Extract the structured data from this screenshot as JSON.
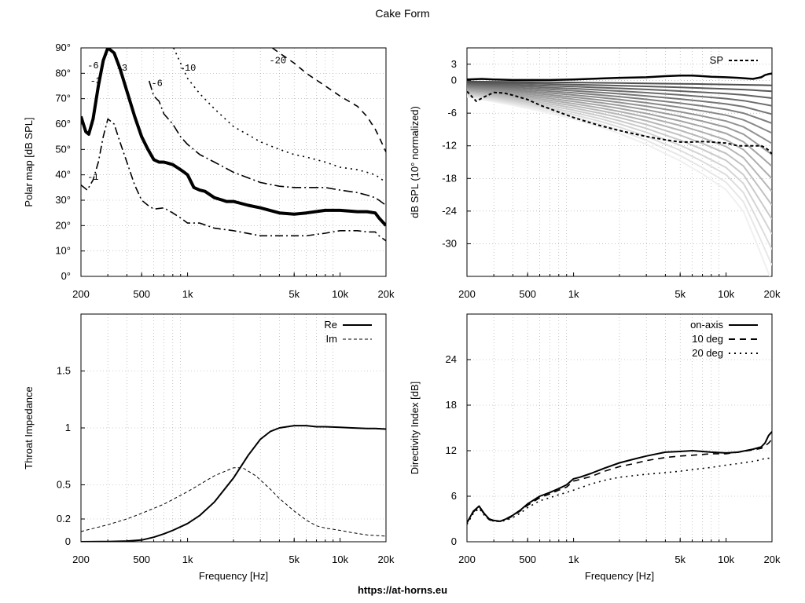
{
  "title": "Cake Form",
  "footer": "https://at-horns.eu",
  "colors": {
    "frame": "#000000",
    "grid": "#a0a0a0",
    "line": "#000000"
  },
  "chart_data": [
    {
      "id": "polar",
      "type": "line",
      "ylabel": "Polar map [dB SPL]",
      "xlabel": "",
      "xscale": "log",
      "xlim": [
        200,
        20000
      ],
      "ylim": [
        0,
        90
      ],
      "xticks": [
        200,
        500,
        1000,
        5000,
        10000,
        20000
      ],
      "xticklabels": [
        "200",
        "500",
        "1k",
        "5k",
        "10k",
        "20k"
      ],
      "yticks": [
        0,
        10,
        20,
        30,
        40,
        50,
        60,
        70,
        80,
        90
      ],
      "yticklabels": [
        "0°",
        "10°",
        "20°",
        "30°",
        "40°",
        "50°",
        "60°",
        "70°",
        "80°",
        "90°"
      ],
      "grid": true,
      "contour_labels": [
        {
          "text": "-6",
          "x": 240,
          "y": 82
        },
        {
          "text": "-3",
          "x": 250,
          "y": 76
        },
        {
          "text": "-3",
          "x": 370,
          "y": 81
        },
        {
          "text": "-6",
          "x": 630,
          "y": 75
        },
        {
          "text": "-10",
          "x": 1000,
          "y": 81
        },
        {
          "text": "-20",
          "x": 3900,
          "y": 84
        },
        {
          "text": "-1",
          "x": 240,
          "y": 38
        }
      ],
      "series": [
        {
          "style": "thick",
          "x": [
            200,
            215,
            225,
            240,
            260,
            280,
            300,
            330,
            360,
            400,
            450,
            500,
            550,
            600,
            650,
            700,
            750,
            800,
            850,
            900,
            950,
            1000,
            1100,
            1200,
            1300,
            1500,
            1700,
            1800,
            2000,
            2500,
            3000,
            4000,
            5000,
            6000,
            8000,
            10000,
            13000,
            15000,
            17000,
            18000,
            20000
          ],
          "y": [
            63,
            57,
            56,
            62,
            75,
            85,
            90,
            88,
            82,
            73,
            63,
            55,
            50,
            46,
            45,
            45,
            44.5,
            44,
            43,
            42,
            41,
            40,
            35,
            34,
            33.5,
            31,
            30,
            29.5,
            29.5,
            28,
            27,
            25,
            24.5,
            25,
            26,
            26,
            25.5,
            25.5,
            25,
            23,
            20
          ]
        },
        {
          "style": "dashdot",
          "x": [
            200,
            220,
            240,
            260,
            280,
            300,
            330,
            360,
            400,
            450,
            500,
            550,
            600,
            700,
            800,
            900,
            1000,
            1200,
            1500,
            2000,
            3000,
            4000,
            5000,
            6000,
            8000,
            10000,
            13000,
            15000,
            17000,
            18000,
            20000
          ],
          "y": [
            36,
            34,
            38,
            45,
            55,
            62,
            60,
            53,
            45,
            36,
            30,
            28,
            26.5,
            27,
            25,
            23,
            21,
            21,
            19,
            18,
            16,
            16,
            16,
            16,
            17,
            18,
            18,
            17.5,
            17.5,
            16,
            14
          ]
        },
        {
          "style": "dashdot-long",
          "x": [
            560,
            600,
            650,
            700,
            800,
            900,
            1000,
            1200,
            1500,
            2000,
            3000,
            4000,
            5000,
            6000,
            8000,
            10000,
            13000,
            15000,
            17000,
            18000,
            20000
          ],
          "y": [
            77,
            71,
            69,
            64,
            60,
            55,
            52,
            48,
            45,
            41,
            37,
            35.5,
            35,
            35,
            35,
            34,
            33,
            32,
            31,
            30,
            28
          ]
        },
        {
          "style": "dotted",
          "x": [
            810,
            900,
            1000,
            1200,
            1500,
            2000,
            3000,
            4000,
            5000,
            6000,
            8000,
            10000,
            13000,
            15000,
            17000,
            18000,
            20000
          ],
          "y": [
            90,
            84,
            78,
            72,
            66,
            59,
            53,
            50,
            48,
            47,
            45,
            43,
            42,
            41,
            40,
            39,
            37
          ]
        },
        {
          "style": "dashed",
          "x": [
            3600,
            4000,
            5000,
            6000,
            8000,
            10000,
            13000,
            15000,
            17000,
            18000,
            20000
          ],
          "y": [
            90,
            88,
            84,
            80,
            75,
            71,
            67,
            63,
            58,
            55,
            49
          ]
        }
      ]
    },
    {
      "id": "spl",
      "type": "line",
      "ylabel": "dB SPL (10° normalized)",
      "xlabel": "",
      "xscale": "log",
      "xlim": [
        200,
        20000
      ],
      "ylim": [
        -36,
        6
      ],
      "xticks": [
        200,
        500,
        1000,
        5000,
        10000,
        20000
      ],
      "xticklabels": [
        "200",
        "500",
        "1k",
        "5k",
        "10k",
        "20k"
      ],
      "yticks": [
        3,
        0,
        -6,
        -12,
        -18,
        -24,
        -30
      ],
      "yticklabels": [
        "3",
        "0",
        "-6",
        "-12",
        "-18",
        "-24",
        "-30"
      ],
      "grid": true,
      "legend": "top-right",
      "legend_entries": [
        "SP"
      ],
      "on_axis": {
        "x": [
          200,
          250,
          300,
          400,
          500,
          700,
          1000,
          2000,
          3000,
          4000,
          5000,
          6000,
          7000,
          8000,
          10000,
          12000,
          15000,
          17000,
          18000,
          19000,
          20000
        ],
        "y": [
          0.2,
          0.3,
          0.2,
          0.1,
          0.1,
          0.1,
          0.2,
          0.5,
          0.6,
          0.8,
          0.9,
          0.9,
          0.8,
          0.7,
          0.6,
          0.5,
          0.3,
          0.6,
          1.0,
          1.2,
          1.3
        ]
      },
      "sp": {
        "name": "SP",
        "x": [
          200,
          230,
          260,
          300,
          350,
          400,
          500,
          600,
          700,
          800,
          1000,
          1200,
          1500,
          2000,
          3000,
          4000,
          5000,
          6000,
          7000,
          8000,
          10000,
          12000,
          15000,
          17000,
          18000,
          19000,
          20000
        ],
        "y": [
          -2,
          -3.8,
          -3,
          -2.2,
          -2.3,
          -2.7,
          -3.5,
          -4.5,
          -5.2,
          -5.8,
          -6.8,
          -7.5,
          -8.3,
          -9.2,
          -10.3,
          -10.9,
          -11.3,
          -11.3,
          -11.2,
          -11.3,
          -11.5,
          -12,
          -12,
          -12,
          -12.3,
          -12.8,
          -13.5
        ]
      },
      "fan_x": [
        200,
        300,
        400,
        500,
        700,
        1000,
        1500,
        2000,
        3000,
        5000,
        7000,
        10000,
        13000,
        15000,
        17000,
        20000
      ],
      "fan_count": 18
    },
    {
      "id": "impedance",
      "type": "line",
      "ylabel": "Throat Impedance",
      "xlabel": "Frequency [Hz]",
      "xscale": "log",
      "xlim": [
        200,
        20000
      ],
      "ylim": [
        0,
        2
      ],
      "xticks": [
        200,
        500,
        1000,
        5000,
        10000,
        20000
      ],
      "xticklabels": [
        "200",
        "500",
        "1k",
        "5k",
        "10k",
        "20k"
      ],
      "yticks": [
        0,
        0.2,
        0.5,
        1,
        1.5
      ],
      "yticklabels": [
        "0",
        "0.2",
        "0.5",
        "1",
        "1.5"
      ],
      "grid": true,
      "legend": "top-right",
      "series": [
        {
          "name": "Re",
          "style": "solid",
          "x": [
            200,
            300,
            400,
            500,
            600,
            700,
            800,
            1000,
            1200,
            1500,
            2000,
            2500,
            3000,
            3500,
            4000,
            5000,
            6000,
            7000,
            8000,
            10000,
            12000,
            15000,
            17000,
            20000
          ],
          "y": [
            0,
            0.002,
            0.006,
            0.015,
            0.04,
            0.07,
            0.1,
            0.16,
            0.23,
            0.35,
            0.56,
            0.76,
            0.9,
            0.97,
            1.0,
            1.02,
            1.02,
            1.01,
            1.01,
            1.005,
            1.0,
            0.995,
            0.995,
            0.99
          ]
        },
        {
          "name": "Im",
          "style": "dashed",
          "x": [
            200,
            300,
            400,
            500,
            700,
            1000,
            1500,
            2000,
            2300,
            2800,
            3500,
            4000,
            5000,
            6000,
            7000,
            8000,
            10000,
            12000,
            15000,
            20000
          ],
          "y": [
            0.09,
            0.15,
            0.2,
            0.25,
            0.33,
            0.44,
            0.58,
            0.65,
            0.65,
            0.58,
            0.46,
            0.38,
            0.27,
            0.19,
            0.14,
            0.12,
            0.1,
            0.08,
            0.06,
            0.05
          ]
        }
      ]
    },
    {
      "id": "directivity",
      "type": "line",
      "ylabel": "Directivity Index [dB]",
      "xlabel": "Frequency [Hz]",
      "xscale": "log",
      "xlim": [
        200,
        20000
      ],
      "ylim": [
        0,
        30
      ],
      "xticks": [
        200,
        500,
        1000,
        5000,
        10000,
        20000
      ],
      "xticklabels": [
        "200",
        "500",
        "1k",
        "5k",
        "10k",
        "20k"
      ],
      "yticks": [
        0,
        6,
        12,
        18,
        24
      ],
      "yticklabels": [
        "0",
        "6",
        "12",
        "18",
        "24"
      ],
      "grid": true,
      "legend": "top-right",
      "series": [
        {
          "name": "on-axis",
          "style": "solid",
          "x": [
            200,
            220,
            240,
            260,
            280,
            300,
            330,
            360,
            400,
            450,
            500,
            600,
            700,
            800,
            900,
            1000,
            1100,
            1300,
            1600,
            2000,
            2500,
            3000,
            4000,
            5000,
            6000,
            7000,
            8000,
            10000,
            12000,
            15000,
            17000,
            18000,
            19000,
            20000
          ],
          "y": [
            2.5,
            4,
            4.7,
            3.7,
            3,
            2.8,
            2.7,
            3,
            3.5,
            4.2,
            5,
            6,
            6.5,
            7,
            7.5,
            8.3,
            8.5,
            9,
            9.7,
            10.4,
            10.9,
            11.3,
            11.8,
            11.9,
            12,
            11.9,
            11.8,
            11.7,
            11.8,
            12.2,
            12.5,
            13,
            14,
            14.5
          ]
        },
        {
          "name": "10 deg",
          "style": "dashed",
          "x": [
            200,
            220,
            240,
            260,
            280,
            300,
            330,
            360,
            400,
            450,
            500,
            600,
            700,
            800,
            900,
            1000,
            1100,
            1300,
            1600,
            2000,
            2500,
            3000,
            4000,
            5000,
            6000,
            7000,
            8000,
            10000,
            12000,
            15000,
            17000,
            18000,
            19000,
            20000
          ],
          "y": [
            2.5,
            3.9,
            4.6,
            3.6,
            2.9,
            2.7,
            2.7,
            2.9,
            3.4,
            4.1,
            4.8,
            5.8,
            6.3,
            6.8,
            7.2,
            8,
            8.2,
            8.6,
            9.3,
            9.9,
            10.3,
            10.7,
            11.1,
            11.3,
            11.4,
            11.5,
            11.6,
            11.6,
            11.8,
            12.1,
            12.3,
            12.6,
            13,
            13.5
          ]
        },
        {
          "name": "20 deg",
          "style": "dotted",
          "x": [
            200,
            220,
            240,
            260,
            280,
            300,
            330,
            360,
            400,
            450,
            500,
            600,
            700,
            800,
            900,
            1000,
            1300,
            1600,
            2000,
            3000,
            4000,
            5000,
            6000,
            8000,
            10000,
            12000,
            15000,
            17000,
            18000,
            20000
          ],
          "y": [
            2.3,
            3.7,
            4.4,
            3.5,
            2.9,
            2.7,
            2.7,
            2.8,
            3.2,
            3.8,
            4.5,
            5.4,
            5.8,
            6.2,
            6.5,
            6.8,
            7.6,
            8.1,
            8.5,
            8.9,
            9.1,
            9.3,
            9.5,
            9.8,
            10.1,
            10.3,
            10.6,
            10.8,
            11,
            11
          ]
        }
      ]
    }
  ]
}
